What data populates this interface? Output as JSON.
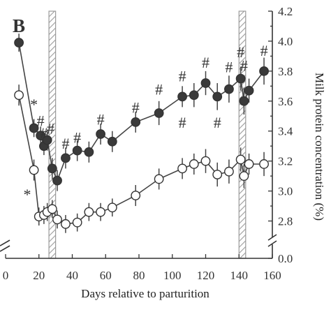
{
  "chart_data": {
    "type": "line",
    "panel_label": "B",
    "xlabel": "Days relative to parturition",
    "ylabel": "Milk protein concentration (%)",
    "xlim": [
      0,
      160
    ],
    "ylim": [
      0,
      4.2
    ],
    "axis_break": [
      0.0,
      2.7
    ],
    "x_ticks": [
      0,
      20,
      40,
      60,
      80,
      100,
      120,
      140,
      160
    ],
    "y_ticks": [
      0.0,
      2.8,
      3.0,
      3.2,
      3.4,
      3.6,
      3.8,
      4.0,
      4.2
    ],
    "y_tick_labels": [
      "0.0",
      "2.8",
      "3.0",
      "3.2",
      "3.4",
      "3.6",
      "3.8",
      "4.0",
      "4.2"
    ],
    "shaded_regions": [
      [
        26,
        30
      ],
      [
        140,
        144
      ]
    ],
    "series": [
      {
        "style": "filled",
        "color": "#3a3a3a",
        "x": [
          8,
          17,
          21,
          23,
          25,
          28,
          31,
          36,
          43,
          50,
          57,
          64,
          78,
          92,
          106,
          113,
          120,
          127,
          134,
          141,
          143,
          146,
          155
        ],
        "y": [
          3.99,
          3.42,
          3.37,
          3.3,
          3.34,
          3.15,
          3.07,
          3.22,
          3.27,
          3.26,
          3.38,
          3.33,
          3.46,
          3.52,
          3.63,
          3.64,
          3.72,
          3.63,
          3.68,
          3.75,
          3.6,
          3.67,
          3.8
        ],
        "err": [
          0.06,
          0.06,
          0.06,
          0.06,
          0.07,
          0.07,
          0.07,
          0.07,
          0.07,
          0.07,
          0.07,
          0.07,
          0.07,
          0.08,
          0.07,
          0.08,
          0.08,
          0.09,
          0.09,
          0.08,
          0.09,
          0.08,
          0.09
        ]
      },
      {
        "style": "open",
        "color": "#ffffff",
        "x": [
          8,
          17,
          20,
          23,
          25,
          28,
          31,
          36,
          43,
          50,
          57,
          64,
          78,
          92,
          106,
          113,
          120,
          127,
          134,
          141,
          143,
          146,
          155
        ],
        "y": [
          3.64,
          3.14,
          2.83,
          2.84,
          2.86,
          2.88,
          2.81,
          2.78,
          2.79,
          2.86,
          2.86,
          2.89,
          2.97,
          3.08,
          3.15,
          3.18,
          3.2,
          3.11,
          3.13,
          3.21,
          3.1,
          3.18,
          3.18
        ],
        "err": [
          0.07,
          0.07,
          0.06,
          0.06,
          0.06,
          0.06,
          0.06,
          0.06,
          0.06,
          0.06,
          0.06,
          0.06,
          0.07,
          0.07,
          0.07,
          0.07,
          0.08,
          0.08,
          0.08,
          0.08,
          0.08,
          0.07,
          0.08
        ]
      }
    ],
    "annotations": [
      {
        "text": "*",
        "x": 17,
        "y": 3.58
      },
      {
        "text": "*",
        "x": 13,
        "y": 2.98
      },
      {
        "text": "#",
        "x": 21,
        "y": 3.47
      },
      {
        "text": "#",
        "x": 23,
        "y": 3.39
      },
      {
        "text": "#",
        "x": 27,
        "y": 3.42
      },
      {
        "text": "#",
        "x": 36,
        "y": 3.32
      },
      {
        "text": "#",
        "x": 43,
        "y": 3.36
      },
      {
        "text": "#",
        "x": 57,
        "y": 3.48
      },
      {
        "text": "#",
        "x": 78,
        "y": 3.56
      },
      {
        "text": "#",
        "x": 92,
        "y": 3.68
      },
      {
        "text": "#",
        "x": 106,
        "y": 3.77
      },
      {
        "text": "#",
        "x": 106,
        "y": 3.46
      },
      {
        "text": "#",
        "x": 120,
        "y": 3.86
      },
      {
        "text": "#",
        "x": 127,
        "y": 3.46
      },
      {
        "text": "#",
        "x": 134,
        "y": 3.83
      },
      {
        "text": "#",
        "x": 141,
        "y": 3.93
      },
      {
        "text": "#",
        "x": 143,
        "y": 3.84
      },
      {
        "text": "#",
        "x": 155,
        "y": 3.94
      }
    ]
  }
}
